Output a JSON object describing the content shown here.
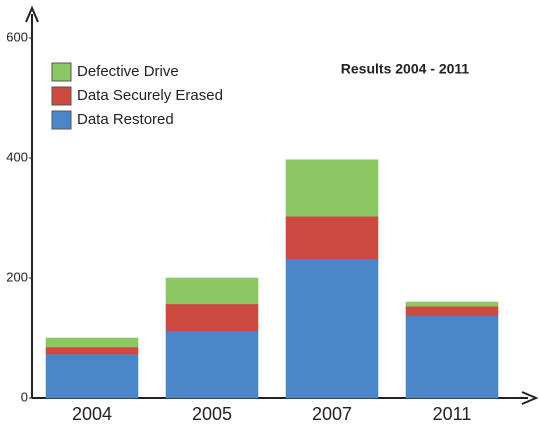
{
  "chart_data": {
    "type": "stacked-bar",
    "title": "Results 2004 - 2011",
    "categories": [
      "2004",
      "2005",
      "2007",
      "2011"
    ],
    "series": [
      {
        "name": "Data Restored",
        "color": "#4a86c8",
        "values": [
          73,
          112,
          232,
          137
        ]
      },
      {
        "name": "Data Securely Erased",
        "color": "#cc4a40",
        "values": [
          12,
          45,
          71,
          16
        ]
      },
      {
        "name": "Defective Drive",
        "color": "#8cc763",
        "values": [
          15,
          43,
          94,
          7
        ]
      }
    ],
    "ylim": [
      0,
      650
    ],
    "yticks": [
      0,
      200,
      400,
      600
    ]
  }
}
